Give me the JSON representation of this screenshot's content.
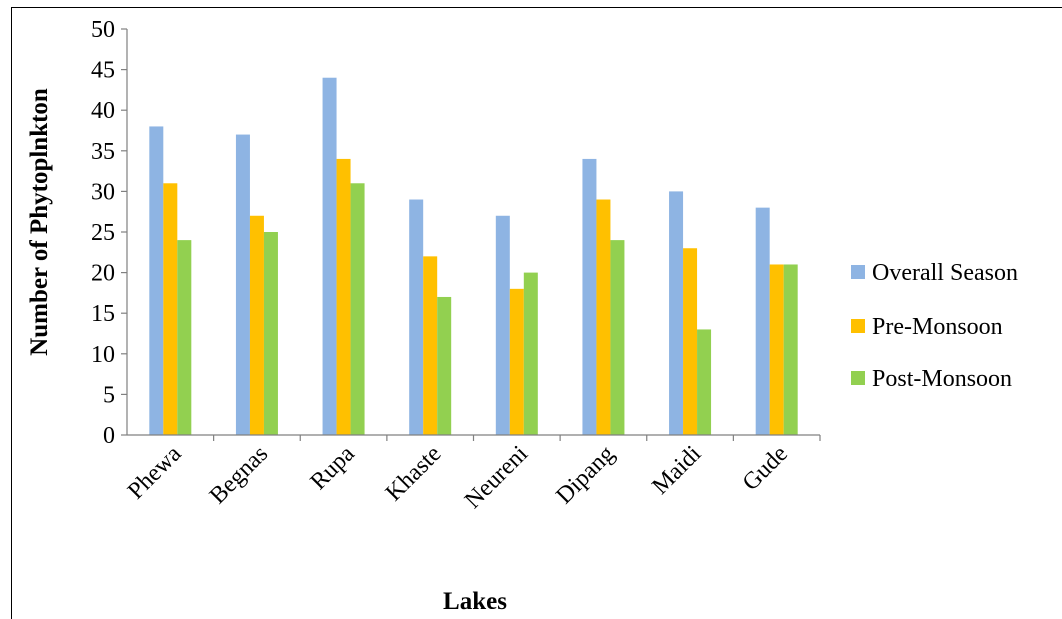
{
  "chart_data": {
    "type": "bar",
    "categories": [
      "Phewa",
      "Begnas",
      "Rupa",
      "Khaste",
      "Neureni",
      "Dipang",
      "Maidi",
      "Gude"
    ],
    "series": [
      {
        "name": "Overall Season",
        "color": "#8EB4E3",
        "values": [
          38,
          37,
          44,
          29,
          27,
          34,
          30,
          28
        ]
      },
      {
        "name": "Pre-Monsoon",
        "color": "#FFC000",
        "values": [
          31,
          27,
          34,
          22,
          18,
          29,
          23,
          21
        ]
      },
      {
        "name": "Post-Monsoon",
        "color": "#92D050",
        "values": [
          24,
          25,
          31,
          17,
          20,
          24,
          13,
          21
        ]
      }
    ],
    "yticks": [
      "0",
      "5",
      "10",
      "15",
      "20",
      "25",
      "30",
      "35",
      "40",
      "45",
      "50"
    ],
    "ylim": [
      0,
      50
    ],
    "xlabel": "Lakes",
    "ylabel": "Number of Phytoplnkton",
    "legend_position": "right",
    "grid": false
  }
}
